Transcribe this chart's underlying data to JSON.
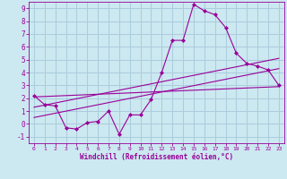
{
  "bg_color": "#cce8f0",
  "grid_color": "#aaccdd",
  "line_color": "#990099",
  "marker_color": "#990099",
  "xlabel": "Windchill (Refroidissement éolien,°C)",
  "xlabel_color": "#990099",
  "tick_color": "#990099",
  "ylim": [
    -1.5,
    9.5
  ],
  "xlim": [
    -0.5,
    23.5
  ],
  "yticks": [
    -1,
    0,
    1,
    2,
    3,
    4,
    5,
    6,
    7,
    8,
    9
  ],
  "xticks": [
    0,
    1,
    2,
    3,
    4,
    5,
    6,
    7,
    8,
    9,
    10,
    11,
    12,
    13,
    14,
    15,
    16,
    17,
    18,
    19,
    20,
    21,
    22,
    23
  ],
  "main_line_x": [
    0,
    1,
    2,
    3,
    4,
    5,
    6,
    7,
    8,
    9,
    10,
    11,
    12,
    13,
    14,
    15,
    16,
    17,
    18,
    19,
    20,
    21,
    22,
    23
  ],
  "main_line_y": [
    2.2,
    1.5,
    1.4,
    -0.3,
    -0.4,
    0.1,
    0.2,
    1.0,
    -0.8,
    0.7,
    0.7,
    1.9,
    4.0,
    6.5,
    6.5,
    9.3,
    8.8,
    8.5,
    7.5,
    5.5,
    4.7,
    4.5,
    4.2,
    3.0
  ],
  "reg_line1_x": [
    0,
    23
  ],
  "reg_line1_y": [
    1.3,
    5.1
  ],
  "reg_line2_x": [
    0,
    23
  ],
  "reg_line2_y": [
    2.1,
    2.9
  ],
  "reg_line3_x": [
    0,
    23
  ],
  "reg_line3_y": [
    0.5,
    4.3
  ]
}
